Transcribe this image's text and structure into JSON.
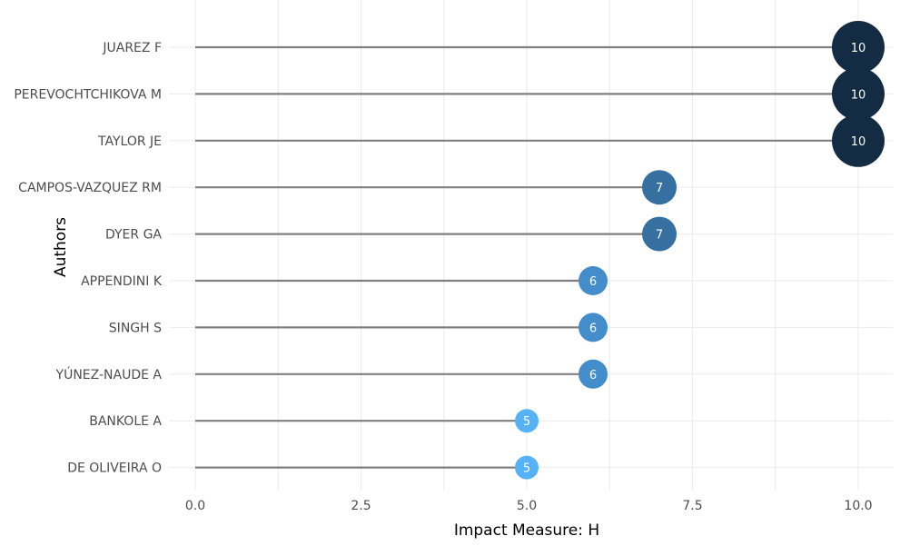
{
  "chart_data": {
    "type": "lollipop",
    "orientation": "horizontal",
    "title": "",
    "xlabel": "Impact Measure: H",
    "ylabel": "Authors",
    "xlim": [
      0,
      10
    ],
    "xticks": [
      0,
      2.5,
      5,
      7.5,
      10
    ],
    "xtick_labels": [
      "0.0",
      "2.5",
      "5.0",
      "7.5",
      "10.0"
    ],
    "grid": true,
    "legend": "none",
    "categories": [
      "JUAREZ F",
      "PEREVOCHTCHIKOVA M",
      "TAYLOR JE",
      "CAMPOS-VAZQUEZ RM",
      "DYER GA",
      "APPENDINI K",
      "SINGH S",
      "YÚNEZ-NAUDE A",
      "BANKOLE A",
      "DE OLIVEIRA O"
    ],
    "values": [
      10,
      10,
      10,
      7,
      7,
      6,
      6,
      6,
      5,
      5
    ],
    "value_labels": [
      "10",
      "10",
      "10",
      "7",
      "7",
      "6",
      "6",
      "6",
      "5",
      "5"
    ],
    "colors": {
      "10": "#132b43",
      "7": "#3670a0",
      "6": "#438dca",
      "5": "#56b1f7",
      "stem": "#808080",
      "grid": "#ebebeb"
    }
  }
}
